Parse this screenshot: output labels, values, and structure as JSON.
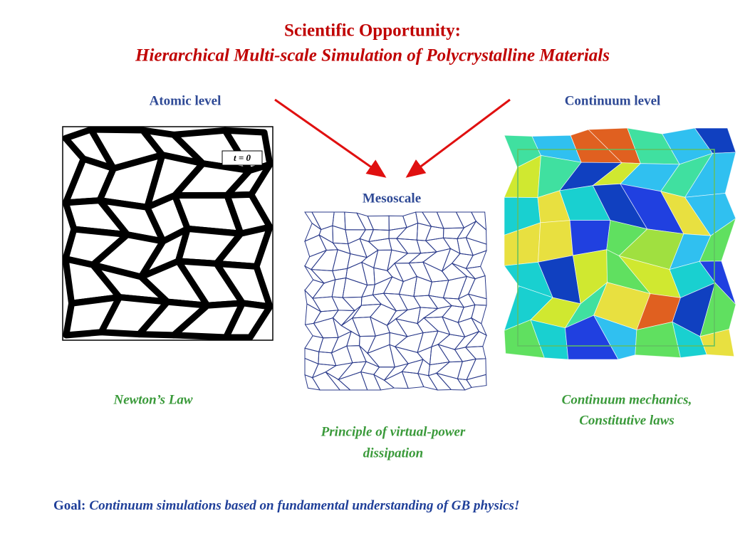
{
  "header": {
    "title": "Scientific Opportunity:",
    "subtitle": "Hierarchical Multi-scale Simulation of Polycrystalline Materials"
  },
  "panels": {
    "atomic": {
      "label": "Atomic level",
      "inset": "t = 0",
      "caption": "Newton’s Law"
    },
    "mesoscale": {
      "label": "Mesoscale",
      "caption": [
        "Principle of virtual-power",
        "dissipation"
      ]
    },
    "continuum": {
      "label": "Continuum level",
      "caption": [
        "Continuum mechanics,",
        "Constitutive laws"
      ]
    }
  },
  "goal": {
    "lead": "Goal:",
    "text": "Continuum simulations based on fundamental understanding of GB physics!"
  }
}
